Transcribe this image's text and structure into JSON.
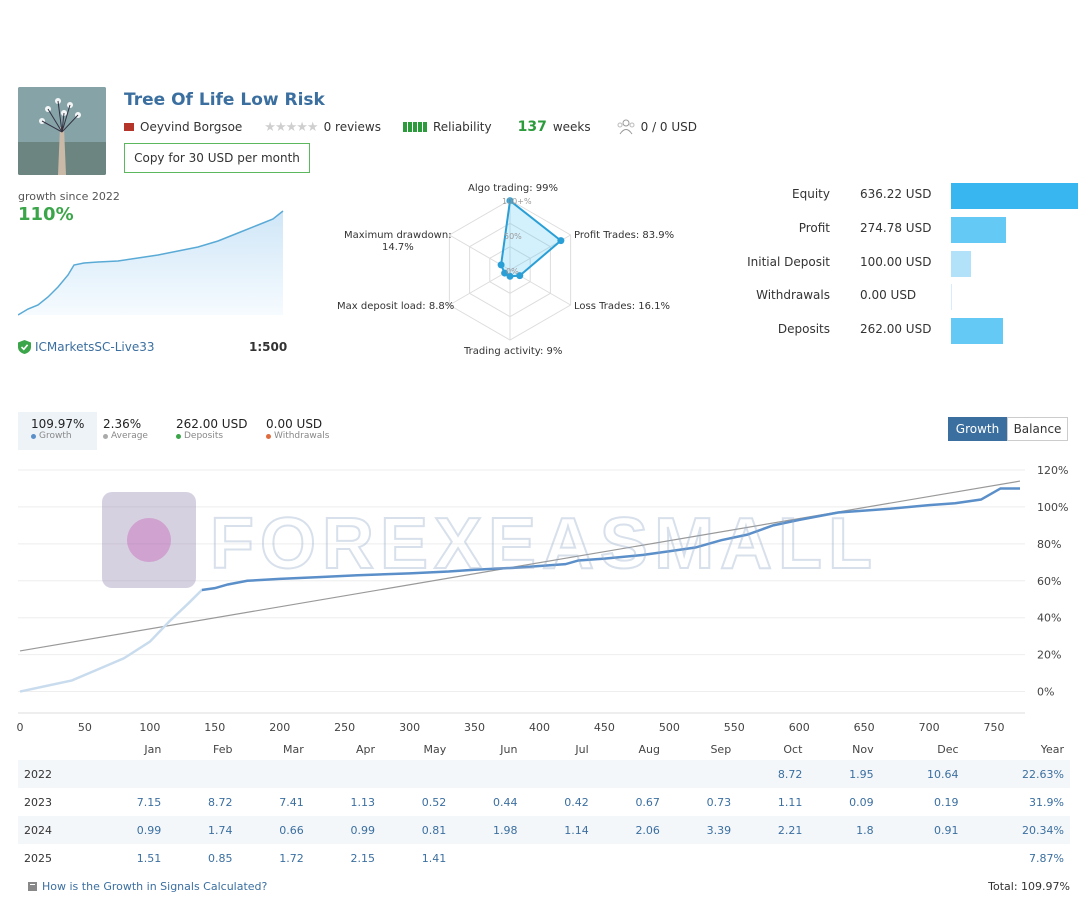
{
  "header": {
    "title": "Tree Of Life Low Risk",
    "author": "Oeyvind Borgsoe",
    "reviews": "0 reviews",
    "reliability": "Reliability",
    "weeks_num": "137",
    "weeks_label": "weeks",
    "subscribers": "0 / 0 USD",
    "copy_button": "Copy for 30 USD per month"
  },
  "growth_widget": {
    "label": "growth since 2022",
    "value": "110%",
    "broker": "ICMarketsSC-Live33",
    "leverage": "1:500"
  },
  "radar": {
    "labels": {
      "algo": "Algo trading: 99%",
      "profit": "Profit Trades: 83.9%",
      "loss": "Loss Trades: 16.1%",
      "activity": "Trading activity: 9%",
      "deposit_load": "Max deposit load: 8.8%",
      "drawdown_1": "Maximum drawdown:",
      "drawdown_2": "14.7%"
    },
    "rings": [
      "100+%",
      "50%",
      "0%"
    ],
    "values": [
      0.99,
      0.839,
      0.161,
      0.09,
      0.088,
      0.147
    ]
  },
  "stats": [
    {
      "name": "Equity",
      "value": "636.22 USD",
      "fraction": 1.0
    },
    {
      "name": "Profit",
      "value": "274.78 USD",
      "fraction": 0.432
    },
    {
      "name": "Initial Deposit",
      "value": "100.00 USD",
      "fraction": 0.157
    },
    {
      "name": "Withdrawals",
      "value": "0.00 USD",
      "fraction": 0.0
    },
    {
      "name": "Deposits",
      "value": "262.00 USD",
      "fraction": 0.412
    }
  ],
  "summary": {
    "growth_val": "109.97%",
    "growth_lbl": "Growth",
    "average_val": "2.36%",
    "average_lbl": "Average",
    "deposits_val": "262.00 USD",
    "deposits_lbl": "Deposits",
    "withdrawals_val": "0.00 USD",
    "withdrawals_lbl": "Withdrawals",
    "btn_growth": "Growth",
    "btn_balance": "Balance"
  },
  "watermark": "FOREXEASMALL",
  "chart_data": {
    "type": "line",
    "x_ticks": [
      "0",
      "50",
      "100",
      "150",
      "200",
      "250",
      "300",
      "350",
      "400",
      "450",
      "500",
      "550",
      "600",
      "650",
      "700",
      "750"
    ],
    "y_ticks": [
      "120%",
      "100%",
      "80%",
      "60%",
      "40%",
      "20%",
      "0%"
    ],
    "xlim": [
      0,
      770
    ],
    "ylim": [
      -10,
      120
    ],
    "series": [
      {
        "x": [
          0,
          20,
          40,
          60,
          80,
          100,
          115,
          130,
          140,
          150,
          160,
          175,
          200,
          230,
          260,
          300,
          330,
          350,
          380,
          400,
          420,
          430,
          450,
          480,
          500,
          520,
          540,
          560,
          580,
          600,
          630,
          650,
          670,
          700,
          720,
          740,
          755,
          770
        ],
        "y": [
          0,
          3,
          6,
          12,
          18,
          27,
          38,
          48,
          55,
          56,
          58,
          60,
          61,
          62,
          63,
          64,
          65,
          66,
          67,
          68,
          69,
          71,
          72,
          74,
          76,
          78,
          82,
          85,
          90,
          93,
          97,
          98,
          99,
          101,
          102,
          104,
          110,
          110
        ]
      },
      {
        "x": [
          0,
          770
        ],
        "y": [
          22,
          114
        ]
      }
    ]
  },
  "table": {
    "headers": [
      "",
      "Jan",
      "Feb",
      "Mar",
      "Apr",
      "May",
      "Jun",
      "Jul",
      "Aug",
      "Sep",
      "Oct",
      "Nov",
      "Dec",
      "Year"
    ],
    "rows": [
      [
        "2022",
        "",
        "",
        "",
        "",
        "",
        "",
        "",
        "",
        "",
        "8.72",
        "1.95",
        "10.64",
        "22.63%"
      ],
      [
        "2023",
        "7.15",
        "8.72",
        "7.41",
        "1.13",
        "0.52",
        "0.44",
        "0.42",
        "0.67",
        "0.73",
        "1.11",
        "0.09",
        "0.19",
        "31.9%"
      ],
      [
        "2024",
        "0.99",
        "1.74",
        "0.66",
        "0.99",
        "0.81",
        "1.98",
        "1.14",
        "2.06",
        "3.39",
        "2.21",
        "1.8",
        "0.91",
        "20.34%"
      ],
      [
        "2025",
        "1.51",
        "0.85",
        "1.72",
        "2.15",
        "1.41",
        "",
        "",
        "",
        "",
        "",
        "",
        "",
        "7.87%"
      ]
    ]
  },
  "footer": {
    "link": "How is the Growth in Signals Calculated?",
    "total": "Total: 109.97%"
  }
}
